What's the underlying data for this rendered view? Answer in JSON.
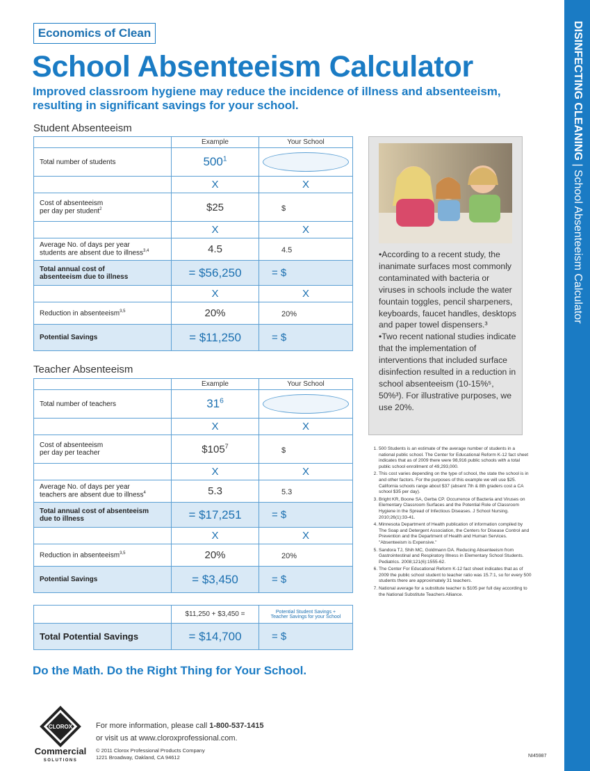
{
  "header": {
    "tag": "Economics of Clean",
    "title": "School Absenteeism Calculator",
    "subtitle": [
      "Improved classroom hygiene may reduce the incidence of illness and absenteeism,",
      "resulting in significant savings for your school."
    ]
  },
  "student": {
    "title": "Student Absenteeism",
    "columns": [
      "Example",
      "Your School"
    ],
    "rows": [
      {
        "label": [
          "Total number of students"
        ],
        "example": "500",
        "example_sup": "1"
      },
      {
        "example": "X",
        "your": "X"
      },
      {
        "label": [
          "Cost of absenteeism",
          "per day per student"
        ],
        "label_sup": "2",
        "example": "$25",
        "your": "$"
      },
      {
        "example": "X",
        "your": "X"
      },
      {
        "label": [
          "Average No. of days per year",
          "students are absent due to illness"
        ],
        "label_sup": "3,4",
        "example": "4.5",
        "your": "4.5"
      },
      {
        "label": [
          "Total annual cost of",
          "absenteeism due to illness"
        ],
        "example": "= $56,250",
        "your": "= $",
        "shaded": true
      },
      {
        "example": "X",
        "your": "X"
      },
      {
        "label": [
          "Reduction in absenteeism"
        ],
        "label_sup": "3,5",
        "example": "20%",
        "your": "20%"
      },
      {
        "label": [
          "Potential Savings"
        ],
        "example": "= $11,250",
        "your": "= $",
        "shaded": true
      }
    ]
  },
  "teacher": {
    "title": "Teacher Absenteeism",
    "columns": [
      "Example",
      "Your School"
    ],
    "rows": [
      {
        "label": [
          "Total number of teachers"
        ],
        "example": "31",
        "example_sup": "6"
      },
      {
        "example": "X",
        "your": "X"
      },
      {
        "label": [
          "Cost of absenteeism",
          "per day per teacher"
        ],
        "example": "$105",
        "example_sup": "7",
        "your": "$"
      },
      {
        "example": "X",
        "your": "X"
      },
      {
        "label": [
          "Average No. of days per year",
          "teachers are absent due to illness"
        ],
        "label_sup": "4",
        "example": "5.3",
        "your": "5.3"
      },
      {
        "label": [
          "Total annual cost of absenteeism",
          "due to illness"
        ],
        "example": "= $17,251",
        "your": "= $",
        "shaded": true
      },
      {
        "example": "X",
        "your": "X"
      },
      {
        "label": [
          "Reduction in absenteeism"
        ],
        "label_sup": "3,5",
        "example": "20%",
        "your": "20%"
      },
      {
        "label": [
          "Potential Savings"
        ],
        "example": "= $3,450",
        "your": "= $",
        "shaded": true
      }
    ]
  },
  "total": {
    "formula": "$11,250 + $3,450 =",
    "your_note": [
      "Potential Student Savings +",
      "Teacher Savings for your School"
    ],
    "label": "Total Potential Savings",
    "example": "= $14,700",
    "your": "= $"
  },
  "sidebox": {
    "paragraphs": [
      "•According to a recent study, the inanimate surfaces most commonly contaminated with bacteria or viruses in schools include the water fountain toggles, pencil sharpeners, keyboards, faucet handles, desktops and paper towel dispensers.³",
      "•Two recent national studies indicate that the implementation of interventions that included surface disinfection resulted in a reduction in school absenteeism (10-15%⁵, 50%³). For illustrative purposes, we use 20%."
    ]
  },
  "references": [
    "500 Students is an estimate of the average number of students in a national public school. The Center for Educational Reform K-12 fact sheet indicates that as of 2009 there were 98,916 public schools with a total public school enrollment of 49,293,000.",
    "This cost varies depending on the type of school, the state the school is in and other factors. For the purposes of this example we will use $25. California schools range about $37 (absent 7th & 8th graders cost a CA school $35 per day).",
    "Bright KR, Boone SA, Gerba CP. Occurrence of Bacteria and Viruses on Elementary Classroom Surfaces and the Potential Role of Classroom Hygiene in the Spread of Infectious Diseases. J School Nursing. 2010;26(1):33-41.",
    "Minnesota Department of Health publication of information compiled by The Soap and Detergent Association, the Centers for Disease Control and Prevention and the Department of Health and Human Services. \"Absenteeism is Expensive.\"",
    "Sandora TJ, Shih MC, Goldmann DA. Reducing Absenteeism from Gastrointestinal and Respiratory Illness in Elementary School Students. Pediatrics. 2008;121(6):1555-62.",
    "The Center For Educational Reform K-12 fact sheet indicates that as of 2009 the public school student to teacher ratio was 15.7:1, so for every 500 students there are approximately 31 teachers.",
    "National average for a substitute teacher is $105 per full day according to the National Substitute Teachers Alliance."
  ],
  "tagline": "Do the Math.  Do the Right Thing for Your School.",
  "contact": {
    "line1": "For more information, please call ",
    "phone": "1-800-537-1415",
    "line2": "or visit us at www.cloroxprofessional.com.",
    "copyright": "© 2011 Clorox Professional Products Company",
    "address": "1221 Broadway, Oakland, CA 94612"
  },
  "logo": {
    "brand": "CLOROX",
    "name": "Commercial",
    "sub": "SOLUTIONS"
  },
  "code": "NI45987",
  "sidebar": {
    "strong": "DISINFECTING CLEANING",
    "divider": "|",
    "light": "School Absenteeism Calculator"
  }
}
